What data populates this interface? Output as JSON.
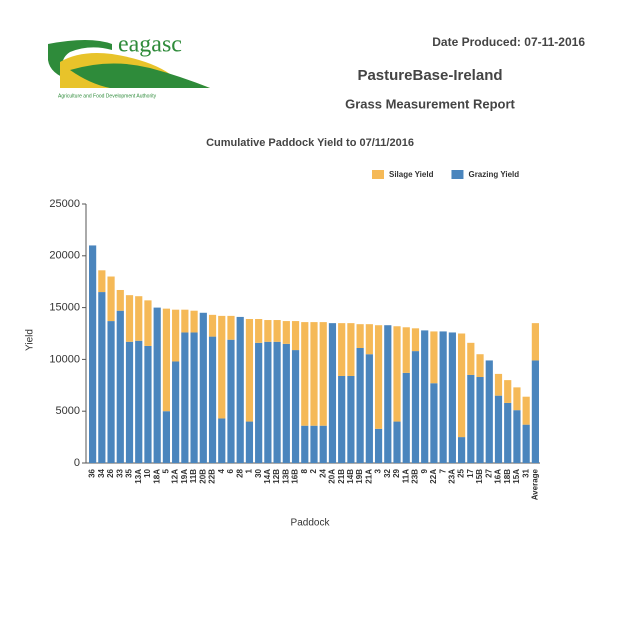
{
  "header": {
    "brand": "eagasc",
    "tagline": "Agriculture and Food Development Authority",
    "date": "Date Produced: 07-11-2016",
    "title": "PastureBase-Ireland",
    "subtitle": "Grass Measurement Report"
  },
  "chart_data": {
    "type": "stacked-bar",
    "title": "Cumulative Paddock Yield to 07/11/2016",
    "x_label": "Paddock",
    "y_label": "Yield",
    "categories": [
      "36",
      "34",
      "26",
      "33",
      "35",
      "13A",
      "10",
      "18A",
      "5",
      "12A",
      "19A",
      "11B",
      "20B",
      "22B",
      "4",
      "6",
      "28",
      "1",
      "30",
      "14A",
      "12B",
      "13B",
      "16B",
      "8",
      "2",
      "24",
      "20A",
      "21B",
      "14B",
      "19B",
      "21A",
      "3",
      "32",
      "29",
      "11A",
      "23B",
      "9",
      "22A",
      "7",
      "23A",
      "25",
      "17",
      "15B",
      "27",
      "16A",
      "18B",
      "15A",
      "31",
      "Average"
    ],
    "series": [
      {
        "name": "Silage Yield",
        "color": "#f5b957",
        "values": [
          0,
          2100,
          4300,
          2000,
          4500,
          4300,
          4400,
          0,
          9900,
          5000,
          2200,
          2100,
          0,
          2100,
          9900,
          2300,
          0,
          9900,
          2300,
          2100,
          2100,
          2200,
          2800,
          10000,
          10000,
          10000,
          0,
          5100,
          5100,
          2300,
          2900,
          10000,
          0,
          9200,
          4400,
          2200,
          0,
          5000,
          0,
          0,
          10000,
          3100,
          2200,
          0,
          2100,
          2200,
          2200,
          2700,
          3600
        ]
      },
      {
        "name": "Grazing Yield",
        "color": "#4a85bd",
        "values": [
          21000,
          16500,
          13700,
          14700,
          11700,
          11800,
          11300,
          15000,
          5000,
          9800,
          12600,
          12600,
          14500,
          12200,
          4300,
          11900,
          14100,
          4000,
          11600,
          11700,
          11700,
          11500,
          10900,
          3600,
          3600,
          3600,
          13500,
          8400,
          8400,
          11100,
          10500,
          3300,
          13300,
          4000,
          8700,
          10800,
          12800,
          7700,
          12700,
          12600,
          2500,
          8500,
          8300,
          9900,
          6500,
          5800,
          5100,
          3700,
          9900
        ]
      }
    ],
    "ylim": [
      0,
      25000
    ],
    "yticks": [
      0,
      5000,
      10000,
      15000,
      20000,
      25000
    ],
    "grid": false,
    "legend": "top-right"
  }
}
